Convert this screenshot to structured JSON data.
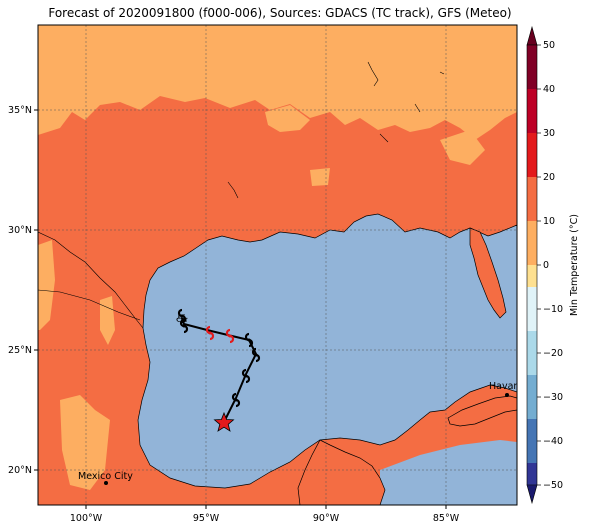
{
  "title": "Forecast of 2020091800 (f000-006), Sources: GDACS (TC track), GFS (Meteo)",
  "axes": {
    "lon_ticks": [
      "100°W",
      "95°W",
      "90°W",
      "85°W"
    ],
    "lat_ticks": [
      "35°N",
      "30°N",
      "25°N",
      "20°N"
    ]
  },
  "colorbar": {
    "label": "Min Temperature (°C)",
    "ticks": [
      "50",
      "40",
      "30",
      "20",
      "10",
      "0",
      "−10",
      "−20",
      "−30",
      "−40",
      "−50"
    ],
    "colors": [
      "#800026",
      "#bd0026",
      "#e31a1c",
      "#f46d43",
      "#fdae61",
      "#fee090",
      "#e0f3f8",
      "#abd9e9",
      "#74add1",
      "#4575b4",
      "#313695"
    ]
  },
  "cities": [
    {
      "name": "Havana"
    },
    {
      "name": "Mexico City"
    }
  ],
  "colors": {
    "water": "#92b4d8",
    "warm": "#f46d43",
    "light": "#fdae61",
    "track_current": "#e31a1c"
  }
}
